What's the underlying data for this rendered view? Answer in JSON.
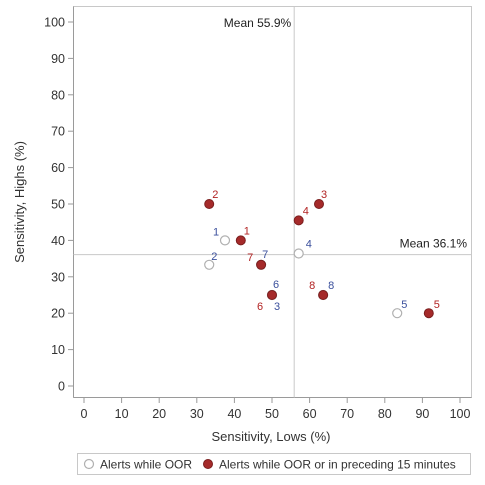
{
  "chart_data": {
    "type": "scatter",
    "xlabel": "Sensitivity, Lows (%)",
    "ylabel": "Sensitivity, Highs (%)",
    "xlim": [
      0,
      100
    ],
    "ylim": [
      0,
      100
    ],
    "xticks": [
      0,
      10,
      20,
      30,
      40,
      50,
      60,
      70,
      80,
      90,
      100
    ],
    "yticks": [
      0,
      10,
      20,
      30,
      40,
      50,
      60,
      70,
      80,
      90,
      100
    ],
    "grid": false,
    "reference_lines": [
      {
        "axis": "x",
        "value": 55.9,
        "label": "Mean 55.9%"
      },
      {
        "axis": "y",
        "value": 36.1,
        "label": "Mean 36.1%"
      }
    ],
    "legend_position": "bottom",
    "series": [
      {
        "name": "Alerts while OOR",
        "marker": "open-circle",
        "color": "#b0b0b0",
        "label_color": "#3a4f9c",
        "points": [
          {
            "label": "1",
            "x": 37.5,
            "y": 40
          },
          {
            "label": "2",
            "x": 33.3,
            "y": 33.3
          },
          {
            "label": "3",
            "x": 50,
            "y": 25
          },
          {
            "label": "4",
            "x": 57.1,
            "y": 36.4
          },
          {
            "label": "5",
            "x": 83.3,
            "y": 20
          },
          {
            "label": "6",
            "x": 50,
            "y": 25
          },
          {
            "label": "7",
            "x": 47.1,
            "y": 33.3
          },
          {
            "label": "8",
            "x": 63.6,
            "y": 25
          }
        ]
      },
      {
        "name": "Alerts while OOR or in preceding 15 minutes",
        "marker": "filled-circle",
        "color": "#a52a2a",
        "label_color": "#b22222",
        "points": [
          {
            "label": "1",
            "x": 41.7,
            "y": 40
          },
          {
            "label": "2",
            "x": 33.3,
            "y": 50
          },
          {
            "label": "3",
            "x": 62.5,
            "y": 50
          },
          {
            "label": "4",
            "x": 57.1,
            "y": 45.5
          },
          {
            "label": "5",
            "x": 91.7,
            "y": 20
          },
          {
            "label": "6",
            "x": 50,
            "y": 25
          },
          {
            "label": "7",
            "x": 47.1,
            "y": 33.3
          },
          {
            "label": "8",
            "x": 63.6,
            "y": 25
          }
        ]
      }
    ]
  }
}
